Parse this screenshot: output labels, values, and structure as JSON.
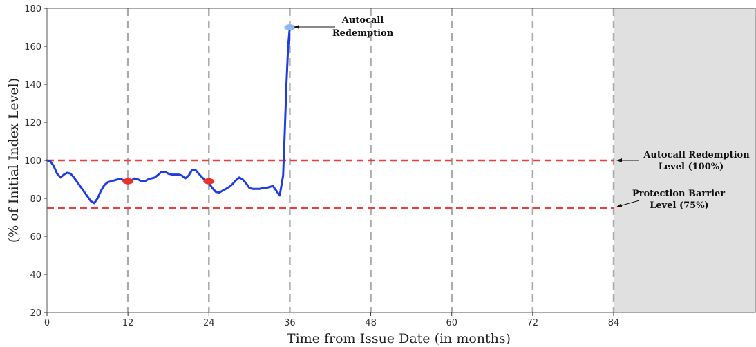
{
  "chart_data": {
    "type": "line",
    "xlabel": "Time from Issue Date (in months)",
    "ylabel": "(% of Initial Index Level)",
    "xlim": [
      0,
      105
    ],
    "ylim": [
      20,
      180
    ],
    "x_ticks": [
      0,
      12,
      24,
      36,
      48,
      60,
      72,
      84
    ],
    "x_tick_labels": [
      "0",
      "12",
      "24",
      "36",
      "48",
      "60",
      "72",
      "84"
    ],
    "y_ticks": [
      20,
      40,
      60,
      80,
      100,
      120,
      140,
      160,
      180
    ],
    "y_tick_labels": [
      "20",
      "40",
      "60",
      "80",
      "100",
      "120",
      "140",
      "160",
      "180"
    ],
    "observation_dates": [
      12,
      24,
      36,
      48,
      60,
      72,
      84
    ],
    "shaded_region": {
      "x": [
        84,
        105
      ],
      "color": "#e0e0e0"
    },
    "series": [
      {
        "color": "#1f3de0",
        "x": [
          0,
          0.5,
          1,
          1.5,
          2,
          2.5,
          3,
          3.5,
          4,
          4.5,
          5,
          5.5,
          6,
          6.5,
          7,
          7.5,
          8,
          8.5,
          9,
          9.5,
          10,
          10.5,
          11,
          11.5,
          12,
          12.5,
          13,
          13.5,
          14,
          14.5,
          15,
          15.5,
          16,
          16.5,
          17,
          17.5,
          18,
          18.5,
          19,
          19.5,
          20,
          20.5,
          21,
          21.5,
          22,
          22.5,
          23,
          23.5,
          24,
          24.5,
          25,
          25.5,
          26,
          26.5,
          27,
          27.5,
          28,
          28.5,
          29,
          29.5,
          30,
          30.5,
          31,
          31.5,
          32,
          32.5,
          33,
          33.5,
          34,
          34.5,
          35,
          35.25,
          35.5,
          35.75,
          36
        ],
        "y": [
          100,
          99.5,
          97,
          93,
          91,
          92.5,
          93.5,
          93,
          91,
          88.5,
          86,
          83.5,
          81,
          78.5,
          77.5,
          80,
          84,
          87,
          88.5,
          89,
          89.5,
          90,
          90,
          89.5,
          89,
          89.5,
          90.5,
          90,
          89,
          89,
          90,
          90.5,
          91,
          92.5,
          94,
          94,
          93,
          92.5,
          92.5,
          92.5,
          92,
          90.5,
          92,
          95,
          95,
          93,
          91,
          89.5,
          88,
          85.5,
          83.5,
          83,
          84,
          85,
          86,
          87.5,
          89.5,
          91,
          90,
          88,
          85.5,
          85,
          85,
          85,
          85.5,
          85.5,
          86,
          86.5,
          84,
          81.5,
          92,
          115,
          140,
          160,
          170
        ]
      }
    ],
    "markers": [
      {
        "x": 12,
        "y": 89,
        "color": "#e8342a"
      },
      {
        "x": 24,
        "y": 89,
        "color": "#e8342a"
      },
      {
        "x": 36,
        "y": 170,
        "color": "#8fb8ef"
      }
    ],
    "reference_lines": [
      {
        "y": 100,
        "color": "#ee3b3b"
      },
      {
        "y": 75,
        "color": "#ee3b3b"
      }
    ],
    "annotations": [
      {
        "lines": [
          "Autocall",
          "Redemption"
        ]
      },
      {
        "lines": [
          "Autocall Redemption",
          "Level (100%)"
        ]
      },
      {
        "lines": [
          "Protection Barrier",
          "Level (75%)"
        ]
      }
    ]
  }
}
